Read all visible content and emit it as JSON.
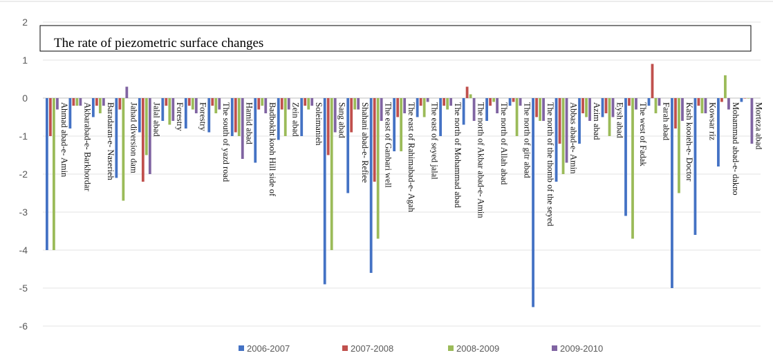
{
  "chart_data": {
    "type": "bar",
    "title": "The rate of piezometric surface changes",
    "xlabel": "",
    "ylabel": "",
    "ylim": [
      -6,
      2
    ],
    "yticks": [
      2,
      1,
      0,
      -1,
      -2,
      -3,
      -4,
      -5,
      -6
    ],
    "grid": true,
    "legend_position": "bottom",
    "categories": [
      "Ahmad abad-e- Amin",
      "Akbarabad-e- Barkhordar",
      "Baradaran-e- Naserieh",
      "Jahad diversion dam",
      "Jalal abad",
      "Forestry",
      "Forestry",
      "The south of yazd road",
      "Hamid abad",
      "Badbokht kooh Hill side of",
      "Zein abad",
      "Soleimanieh",
      "Sang abad",
      "Shahani abad-e- Refiee",
      "The east of Ganbari well",
      "The east of Rahimabad-e- Agah",
      "The east of seyed jalal",
      "The north of Mohammad abad",
      "The north of Akbar abad-e- Amin",
      "The north of Allah abad",
      "The north of gitr abad",
      "The north of the thomb of the seyed",
      "Abbas abad-e- Amin",
      "Azim abad",
      "Eysh abad",
      "The west of Fadak",
      "Farah abad",
      "Kash kooieh-e- Doctor",
      "Kowsar riz",
      "Mohammad abad-e- dakno",
      "Morteza abad"
    ],
    "series": [
      {
        "name": "2006-2007",
        "color": "#4472c4",
        "values": [
          -4.0,
          -0.8,
          -0.5,
          -2.1,
          -0.9,
          -0.6,
          -0.8,
          -0.9,
          -1.0,
          -1.7,
          -1.1,
          -1.0,
          -4.9,
          -2.5,
          -4.6,
          -1.4,
          -0.5,
          -1.0,
          -0.7,
          -0.6,
          -0.2,
          -5.5,
          -2.2,
          -1.2,
          -0.5,
          -3.1,
          -0.2,
          -5.0,
          -3.6,
          -1.8,
          -0.1
        ]
      },
      {
        "name": "2007-2008",
        "color": "#c0504d",
        "values": [
          -1.0,
          -0.2,
          -0.2,
          -0.3,
          -2.2,
          -0.2,
          -0.2,
          -0.2,
          -0.9,
          -0.3,
          -0.3,
          -0.2,
          -1.5,
          -0.9,
          -2.2,
          -0.5,
          -0.2,
          -0.2,
          0.3,
          -0.2,
          -0.1,
          -0.5,
          -1.2,
          -0.4,
          -0.4,
          -0.2,
          0.9,
          -0.8,
          -0.2,
          -0.1,
          0.0
        ]
      },
      {
        "name": "2008-2009",
        "color": "#9bbb59",
        "values": [
          -4.0,
          -0.2,
          -0.4,
          -2.7,
          -1.5,
          -0.7,
          -0.3,
          -0.4,
          -1.0,
          -0.2,
          -1.0,
          -0.3,
          -4.0,
          -0.3,
          -3.7,
          -1.4,
          -0.5,
          -0.3,
          0.1,
          -0.1,
          -1.0,
          -0.6,
          -2.0,
          -0.5,
          -1.0,
          -3.7,
          -0.4,
          -2.5,
          -0.4,
          0.6,
          0.0
        ]
      },
      {
        "name": "2009-2010",
        "color": "#8064a2",
        "values": [
          -0.3,
          -0.2,
          -0.2,
          0.3,
          -2.0,
          -0.6,
          -0.4,
          -0.3,
          -1.6,
          -0.4,
          -0.3,
          -0.2,
          -0.9,
          -0.3,
          -0.6,
          -0.4,
          -0.1,
          -0.2,
          -0.6,
          -0.4,
          -0.2,
          -0.6,
          -1.7,
          -0.6,
          -0.5,
          -0.3,
          -0.2,
          -0.6,
          -0.4,
          -0.3,
          -1.2
        ]
      }
    ]
  }
}
